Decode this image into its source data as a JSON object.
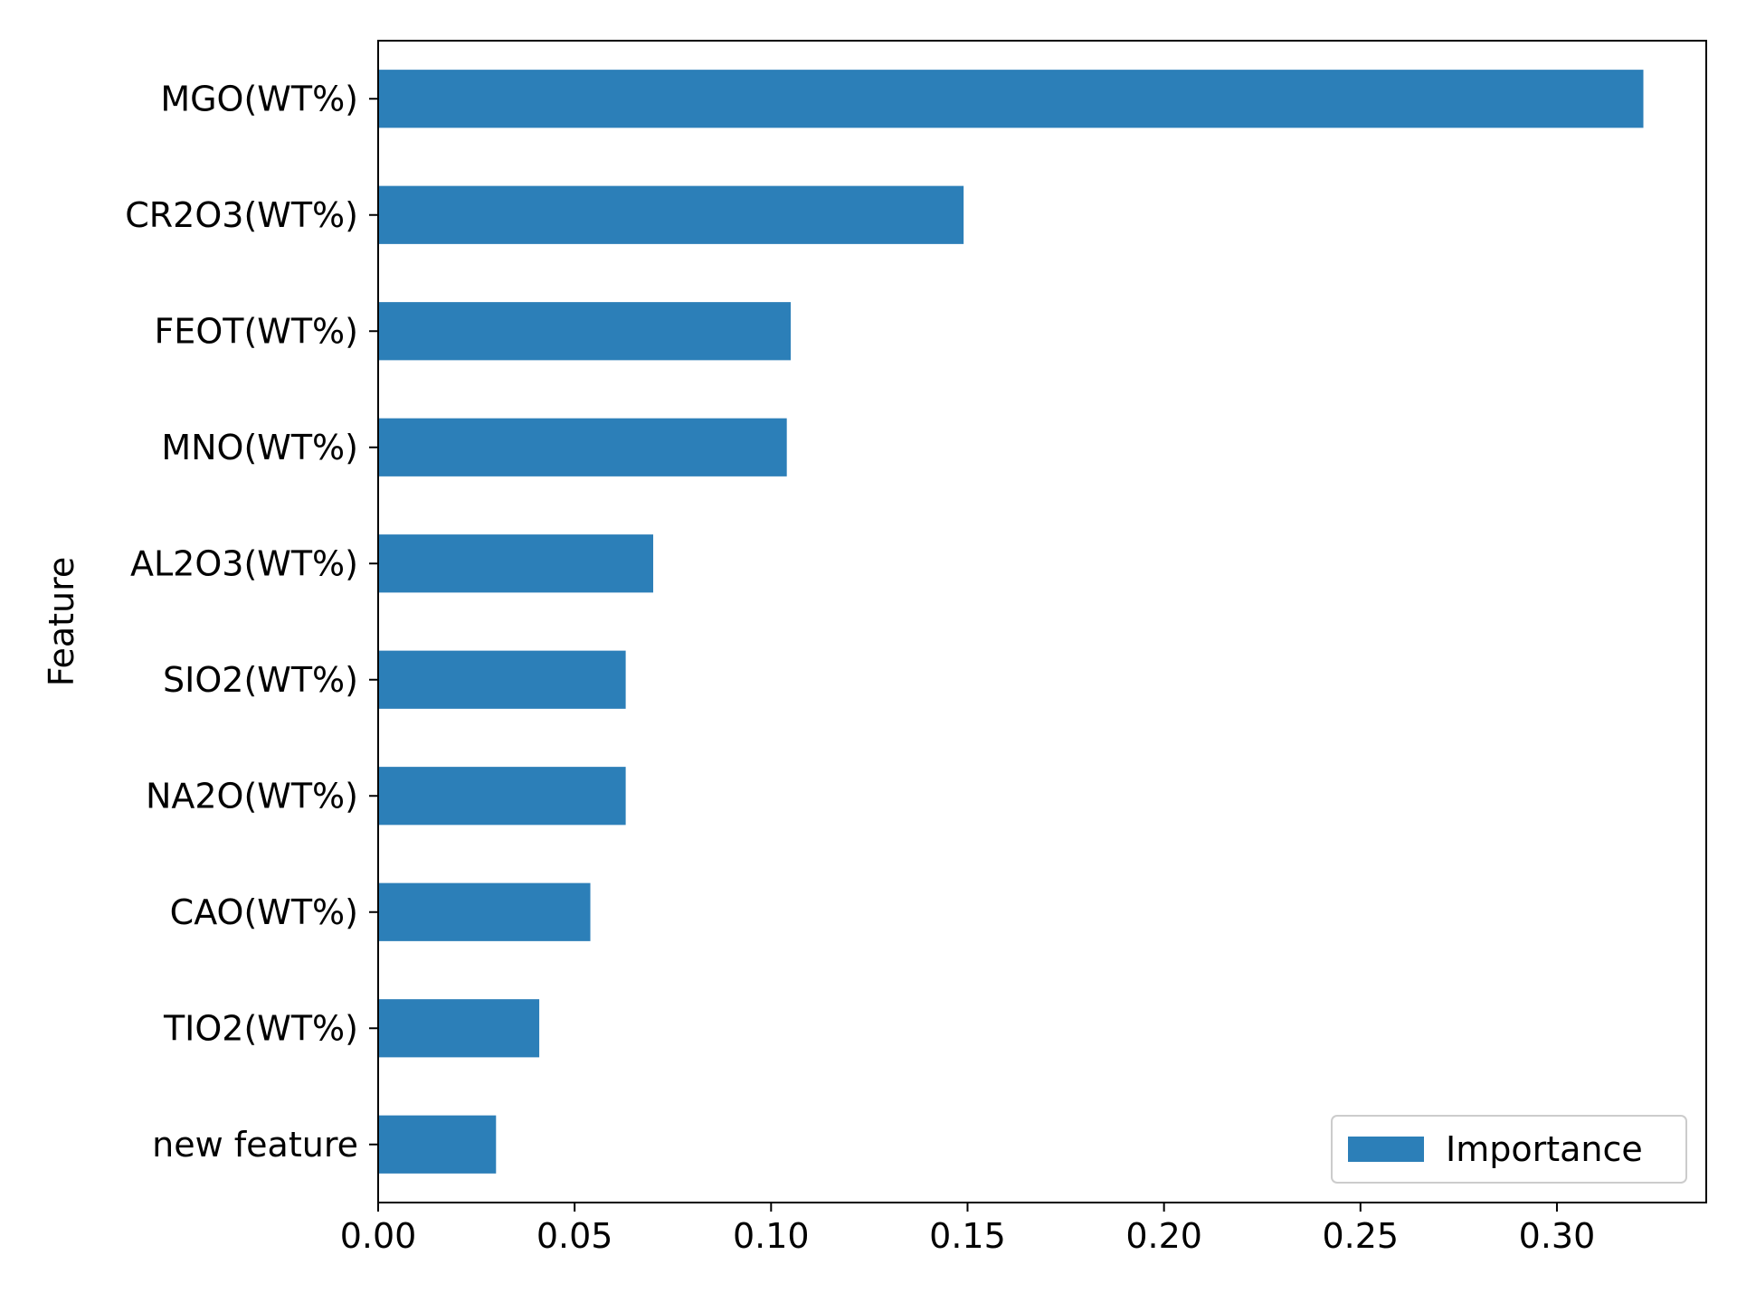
{
  "chart_data": {
    "type": "bar",
    "orientation": "horizontal",
    "categories": [
      "new feature",
      "TIO2(WT%)",
      "CAO(WT%)",
      "NA2O(WT%)",
      "SIO2(WT%)",
      "AL2O3(WT%)",
      "MNO(WT%)",
      "FEOT(WT%)",
      "CR2O3(WT%)",
      "MGO(WT%)"
    ],
    "series": [
      {
        "name": "Importance",
        "values": [
          0.03,
          0.041,
          0.054,
          0.063,
          0.063,
          0.07,
          0.104,
          0.105,
          0.149,
          0.322
        ]
      }
    ],
    "bar_color": "#2c7fb8",
    "title": "",
    "xlabel": "",
    "ylabel": "Feature",
    "xlim": [
      0,
      0.338
    ],
    "xticks": [
      0.0,
      0.05,
      0.1,
      0.15,
      0.2,
      0.25,
      0.3
    ],
    "xtick_labels": [
      "0.00",
      "0.05",
      "0.10",
      "0.15",
      "0.20",
      "0.25",
      "0.30"
    ],
    "grid": false,
    "legend": {
      "position": "lower-right",
      "entries": [
        "Importance"
      ]
    }
  }
}
